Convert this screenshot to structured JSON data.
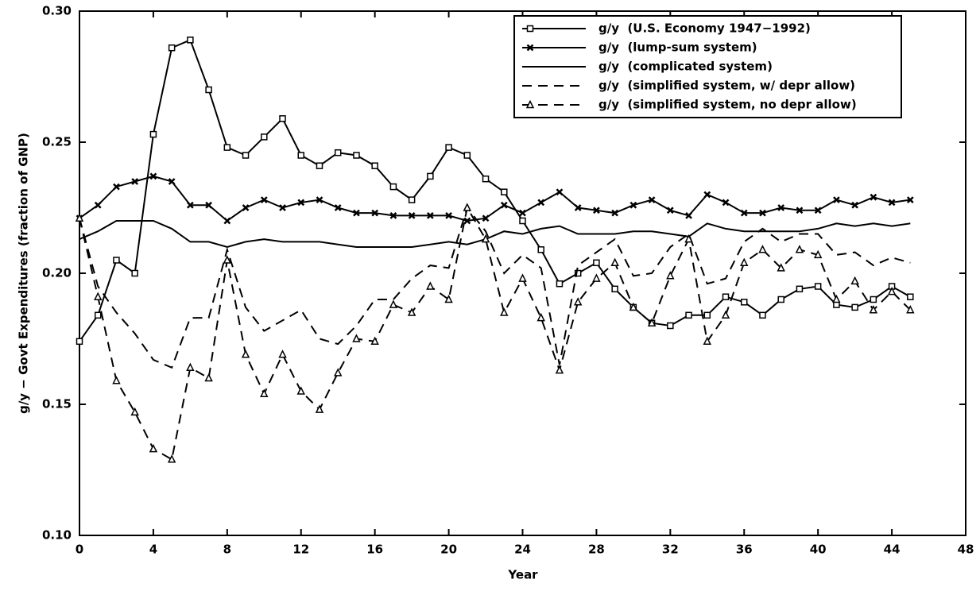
{
  "chart_data": {
    "type": "line",
    "xlabel": "Year",
    "ylabel": "g/y − Govt Expenditures (fraction of GNP)",
    "x": [
      0,
      1,
      2,
      3,
      4,
      5,
      6,
      7,
      8,
      9,
      10,
      11,
      12,
      13,
      14,
      15,
      16,
      17,
      18,
      19,
      20,
      21,
      22,
      23,
      24,
      25,
      26,
      27,
      28,
      29,
      30,
      31,
      32,
      33,
      34,
      35,
      36,
      37,
      38,
      39,
      40,
      41,
      42,
      43,
      44,
      45
    ],
    "xlim": [
      0,
      48
    ],
    "xticks": [
      0,
      4,
      8,
      12,
      16,
      20,
      24,
      28,
      32,
      36,
      40,
      44,
      48
    ],
    "ylim": [
      0.1,
      0.3
    ],
    "yticks": [
      {
        "value": 0.1,
        "label": "0.10"
      },
      0.15,
      {
        "value": 0.2,
        "label": "0.20"
      },
      0.25,
      {
        "value": 0.3,
        "label": "0.30"
      }
    ],
    "legend": "upper right",
    "series": [
      {
        "name": "g/y  (U.S. Economy 1947−1992)",
        "color": "#000000",
        "marker": "square",
        "line_style": "solid",
        "values": [
          0.174,
          0.184,
          0.205,
          0.2,
          0.253,
          0.286,
          0.289,
          0.27,
          0.248,
          0.245,
          0.252,
          0.259,
          0.245,
          0.241,
          0.246,
          0.245,
          0.241,
          0.233,
          0.228,
          0.237,
          0.248,
          0.245,
          0.236,
          0.231,
          0.22,
          0.209,
          0.196,
          0.2,
          0.204,
          0.194,
          0.187,
          0.181,
          0.18,
          0.184,
          0.184,
          0.191,
          0.189,
          0.184,
          0.19,
          0.194,
          0.195,
          0.188,
          0.187,
          0.19,
          0.195,
          0.191
        ]
      },
      {
        "name": "g/y  (lump-sum system)",
        "color": "#000000",
        "marker": "x",
        "line_style": "solid",
        "values": [
          0.221,
          0.226,
          0.233,
          0.235,
          0.237,
          0.235,
          0.226,
          0.226,
          0.22,
          0.225,
          0.228,
          0.225,
          0.227,
          0.228,
          0.225,
          0.223,
          0.223,
          0.222,
          0.222,
          0.222,
          0.222,
          0.22,
          0.221,
          0.226,
          0.223,
          0.227,
          0.231,
          0.225,
          0.224,
          0.223,
          0.226,
          0.228,
          0.224,
          0.222,
          0.23,
          0.227,
          0.223,
          0.223,
          0.225,
          0.224,
          0.224,
          0.228,
          0.226,
          0.229,
          0.227,
          0.228
        ]
      },
      {
        "name": "g/y  (complicated system)",
        "color": "#000000",
        "marker": "none",
        "line_style": "solid",
        "values": [
          0.213,
          0.216,
          0.22,
          0.22,
          0.22,
          0.217,
          0.212,
          0.212,
          0.21,
          0.212,
          0.213,
          0.212,
          0.212,
          0.212,
          0.211,
          0.21,
          0.21,
          0.21,
          0.21,
          0.211,
          0.212,
          0.211,
          0.213,
          0.216,
          0.215,
          0.217,
          0.218,
          0.215,
          0.215,
          0.215,
          0.216,
          0.216,
          0.215,
          0.214,
          0.219,
          0.217,
          0.216,
          0.216,
          0.216,
          0.216,
          0.217,
          0.219,
          0.218,
          0.219,
          0.218,
          0.219
        ]
      },
      {
        "name": "g/y  (simplified system, w/ depr allow)",
        "color": "#000000",
        "marker": "none",
        "line_style": "dashed",
        "values": [
          0.221,
          0.195,
          0.185,
          0.177,
          0.167,
          0.164,
          0.183,
          0.183,
          0.209,
          0.187,
          0.178,
          0.182,
          0.186,
          0.175,
          0.173,
          0.18,
          0.19,
          0.19,
          0.198,
          0.203,
          0.202,
          0.225,
          0.216,
          0.2,
          0.207,
          0.202,
          0.165,
          0.203,
          0.208,
          0.213,
          0.199,
          0.2,
          0.21,
          0.215,
          0.196,
          0.198,
          0.212,
          0.217,
          0.212,
          0.215,
          0.215,
          0.207,
          0.208,
          0.203,
          0.206,
          0.204
        ]
      },
      {
        "name": "g/y  (simplified system, no depr allow)",
        "color": "#000000",
        "marker": "triangle",
        "line_style": "dashed",
        "values": [
          0.221,
          0.191,
          0.159,
          0.147,
          0.133,
          0.129,
          0.164,
          0.16,
          0.205,
          0.169,
          0.154,
          0.169,
          0.155,
          0.148,
          0.162,
          0.175,
          0.174,
          0.188,
          0.185,
          0.195,
          0.19,
          0.225,
          0.213,
          0.185,
          0.198,
          0.183,
          0.163,
          0.189,
          0.198,
          0.204,
          0.187,
          0.181,
          0.199,
          0.213,
          0.174,
          0.184,
          0.204,
          0.209,
          0.202,
          0.209,
          0.207,
          0.19,
          0.197,
          0.186,
          0.193,
          0.186
        ]
      }
    ]
  }
}
